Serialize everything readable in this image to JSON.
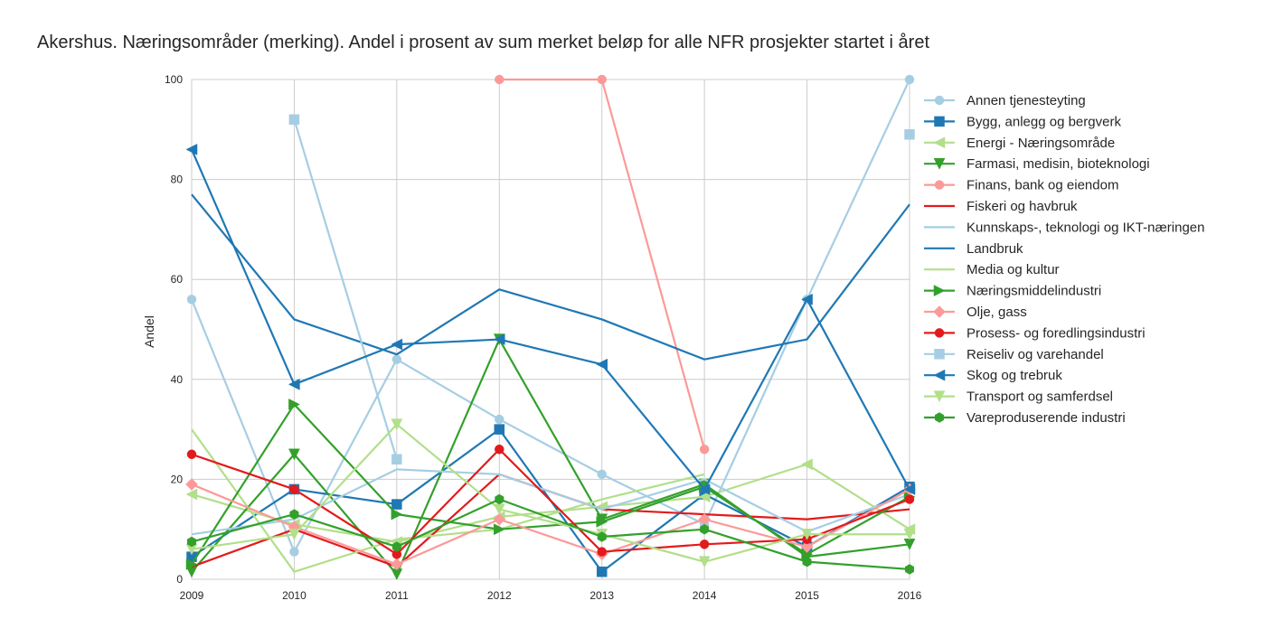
{
  "chart_data": {
    "type": "line",
    "title": "Akershus. Næringsområder (merking). Andel i prosent av sum merket beløp for alle NFR prosjekter startet i året",
    "xlabel": "",
    "ylabel": "Andel",
    "x": [
      2009,
      2010,
      2011,
      2012,
      2013,
      2014,
      2015,
      2016
    ],
    "x_tick_labels": [
      "2009",
      "2010",
      "2011",
      "2012",
      "2013",
      "2014",
      "2015",
      "2016"
    ],
    "xlim": [
      2009,
      2016
    ],
    "ylim": [
      0,
      100
    ],
    "y_ticks": [
      0,
      20,
      40,
      60,
      80,
      100
    ],
    "y_tick_labels": [
      "0",
      "20",
      "40",
      "60",
      "80",
      "100"
    ],
    "grid": true,
    "legend_position": "right",
    "series": [
      {
        "name": "Annen tjenesteyting",
        "color": "#a6cee3",
        "marker": "circle",
        "values": [
          56,
          5.5,
          44,
          32,
          21,
          11,
          56,
          100
        ]
      },
      {
        "name": "Bygg, anlegg og bergverk",
        "color": "#1f78b4",
        "marker": "square",
        "values": [
          4.5,
          18,
          15,
          30,
          1.5,
          17,
          6.5,
          18.5
        ]
      },
      {
        "name": "Energi - Næringsområde",
        "color": "#b2df8a",
        "marker": "triangle-left",
        "values": [
          17,
          11,
          7.5,
          12.5,
          14.5,
          16.5,
          23,
          10
        ]
      },
      {
        "name": "Farmasi, medisin, bioteknologi",
        "color": "#33a02c",
        "marker": "triangle-down",
        "values": [
          1.5,
          25,
          1,
          48,
          12,
          19,
          4.5,
          7
        ]
      },
      {
        "name": "Finans, bank og eiendom",
        "color": "#fb9a99",
        "marker": "circle",
        "values": [
          null,
          null,
          null,
          100,
          100,
          26,
          null,
          null
        ]
      },
      {
        "name": "Fiskeri og havbruk",
        "color": "#e31a1c",
        "marker": "none",
        "values": [
          2.5,
          10,
          2.5,
          21,
          14,
          13,
          12,
          14
        ]
      },
      {
        "name": "Kunnskaps-, teknologi og IKT-næringen",
        "color": "#a6cee3",
        "marker": "none",
        "values": [
          9,
          12,
          22,
          21,
          14,
          20,
          9.5,
          17
        ]
      },
      {
        "name": "Landbruk",
        "color": "#1f78b4",
        "marker": "none",
        "values": [
          77,
          52,
          45,
          58,
          52,
          44,
          48,
          75
        ]
      },
      {
        "name": "Media og kultur",
        "color": "#b2df8a",
        "marker": "none",
        "values": [
          30,
          1.5,
          8,
          10,
          16,
          21,
          null,
          null
        ]
      },
      {
        "name": "Næringsmiddelindustri",
        "color": "#33a02c",
        "marker": "triangle-right",
        "values": [
          3,
          35,
          13,
          10,
          11.5,
          18.5,
          5,
          16.5
        ]
      },
      {
        "name": "Olje, gass",
        "color": "#fb9a99",
        "marker": "diamond",
        "values": [
          19,
          10.5,
          3,
          12,
          5,
          12,
          6.5,
          18
        ]
      },
      {
        "name": "Prosess- og foredlingsindustri",
        "color": "#e31a1c",
        "marker": "circle",
        "values": [
          25,
          18,
          5,
          26,
          5.5,
          7,
          8,
          16
        ]
      },
      {
        "name": "Reiseliv og varehandel",
        "color": "#a6cee3",
        "marker": "square",
        "values": [
          null,
          92,
          24,
          null,
          null,
          null,
          null,
          89
        ]
      },
      {
        "name": "Skog og trebruk",
        "color": "#1f78b4",
        "marker": "triangle-left",
        "values": [
          86,
          39,
          47,
          48,
          43,
          18,
          56,
          18
        ]
      },
      {
        "name": "Transport og samferdsel",
        "color": "#b2df8a",
        "marker": "triangle-down",
        "values": [
          6,
          9,
          31,
          14,
          9,
          3.5,
          9,
          9
        ]
      },
      {
        "name": "Vareproduserende industri",
        "color": "#33a02c",
        "marker": "hexagon",
        "values": [
          7.5,
          13,
          6.5,
          16,
          8.5,
          10,
          3.5,
          2
        ]
      }
    ]
  }
}
